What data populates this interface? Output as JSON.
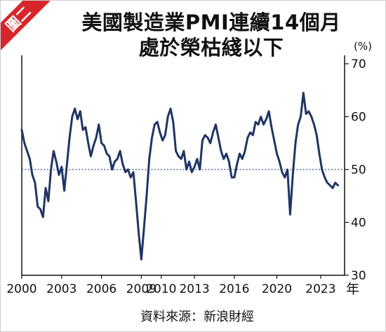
{
  "badge": "圖二",
  "title_line1": "美國製造業PMI連續14個月",
  "title_line2": "處於榮枯綫以下",
  "source": "資料來源：新浪財經",
  "chart_data": {
    "type": "line",
    "y_unit_label": "(%)",
    "x_unit_label": "年",
    "xlim": [
      2000,
      2024.3
    ],
    "ylim": [
      30,
      70
    ],
    "x_ticks": [
      2000,
      2003,
      2006,
      2009,
      2010,
      2013,
      2016,
      2020,
      2023
    ],
    "x_tick_positions": [
      2000,
      2003,
      2006,
      2009,
      2010.5,
      2013,
      2016,
      2019.2,
      2022.5
    ],
    "y_ticks": [
      30,
      40,
      50,
      60,
      70
    ],
    "reference_line": 50,
    "line_color": "#1f3564",
    "ref_color": "#2f4f86",
    "series": [
      {
        "x": [
          2000.0,
          2000.2,
          2000.4,
          2000.6,
          2000.8,
          2001.0,
          2001.2,
          2001.4,
          2001.6,
          2001.8,
          2002.0,
          2002.2,
          2002.4,
          2002.6,
          2002.8,
          2003.0,
          2003.2,
          2003.4,
          2003.6,
          2003.8,
          2004.0,
          2004.2,
          2004.4,
          2004.6,
          2004.8,
          2005.0,
          2005.2,
          2005.4,
          2005.6,
          2005.8,
          2006.0,
          2006.2,
          2006.4,
          2006.6,
          2006.8,
          2007.0,
          2007.2,
          2007.4,
          2007.6,
          2007.8,
          2008.0,
          2008.2,
          2008.4,
          2008.6,
          2008.8,
          2009.0,
          2009.2,
          2009.4,
          2009.6,
          2009.8,
          2010.0,
          2010.2,
          2010.4,
          2010.6,
          2010.8,
          2011.0,
          2011.2,
          2011.4,
          2011.6,
          2011.8,
          2012.0,
          2012.2,
          2012.4,
          2012.6,
          2012.8,
          2013.0,
          2013.2,
          2013.4,
          2013.6,
          2013.8,
          2014.0,
          2014.2,
          2014.4,
          2014.6,
          2014.8,
          2015.0,
          2015.2,
          2015.4,
          2015.6,
          2015.8,
          2016.0,
          2016.2,
          2016.4,
          2016.6,
          2016.8,
          2017.0,
          2017.2,
          2017.4,
          2017.6,
          2017.8,
          2018.0,
          2018.2,
          2018.4,
          2018.6,
          2018.8,
          2019.0,
          2019.2,
          2019.4,
          2019.6,
          2019.8,
          2020.0,
          2020.2,
          2020.4,
          2020.6,
          2020.8,
          2021.0,
          2021.2,
          2021.4,
          2021.6,
          2021.8,
          2022.0,
          2022.2,
          2022.4,
          2022.6,
          2022.8,
          2023.0,
          2023.2,
          2023.4,
          2023.6,
          2023.8
        ],
        "y": [
          57.5,
          55.0,
          53.5,
          52.0,
          49.0,
          47.5,
          43.0,
          42.5,
          41.0,
          46.5,
          44.0,
          50.0,
          53.5,
          51.5,
          49.0,
          50.5,
          46.0,
          51.0,
          56.0,
          60.0,
          61.5,
          59.5,
          61.0,
          57.5,
          58.0,
          55.0,
          52.5,
          54.5,
          56.0,
          58.5,
          55.0,
          54.5,
          53.0,
          52.5,
          50.0,
          51.5,
          52.0,
          53.5,
          51.0,
          49.5,
          50.0,
          48.5,
          49.5,
          44.0,
          38.0,
          33.0,
          39.0,
          45.0,
          52.0,
          56.0,
          58.5,
          59.0,
          57.0,
          55.5,
          56.5,
          60.0,
          61.5,
          59.0,
          53.5,
          52.5,
          52.0,
          53.5,
          50.0,
          51.5,
          49.5,
          50.5,
          52.0,
          50.0,
          55.5,
          56.5,
          56.0,
          55.0,
          57.0,
          58.5,
          56.0,
          53.5,
          52.0,
          53.0,
          51.5,
          48.5,
          48.5,
          51.0,
          53.0,
          52.0,
          53.5,
          56.0,
          57.0,
          56.5,
          59.0,
          58.5,
          60.0,
          58.5,
          59.5,
          61.0,
          58.0,
          55.5,
          53.0,
          51.5,
          49.5,
          48.5,
          50.0,
          41.5,
          49.0,
          55.0,
          58.5,
          60.0,
          64.5,
          60.5,
          61.0,
          60.0,
          58.5,
          56.5,
          53.0,
          50.0,
          48.5,
          47.5,
          47.0,
          46.5,
          47.5,
          47.0
        ]
      }
    ]
  }
}
